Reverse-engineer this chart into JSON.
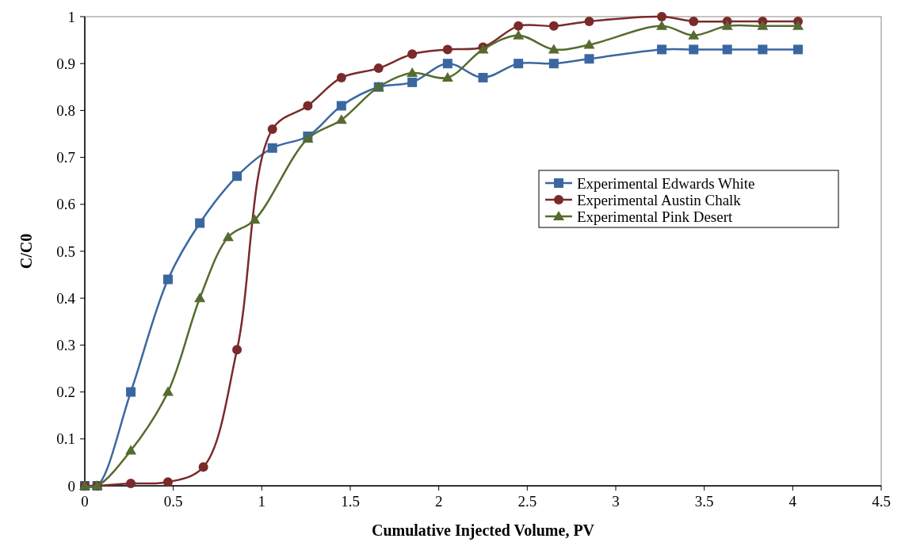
{
  "chart_data": {
    "type": "line",
    "xlabel": "Cumulative Injected Volume, PV",
    "ylabel": "C/C0",
    "x": [
      0,
      0.07,
      0.26,
      0.47,
      0.65,
      0.86,
      1.06,
      1.26,
      1.45,
      1.66,
      1.85,
      2.05,
      2.25,
      2.45,
      2.65,
      2.85,
      3.26,
      3.44,
      3.63,
      3.83,
      4.03
    ],
    "series": [
      {
        "name": "Experimental Edwards White",
        "color": "#3a67a0",
        "marker": "square",
        "values": [
          0,
          0,
          0.2,
          0.44,
          0.56,
          0.66,
          0.72,
          0.745,
          0.81,
          0.85,
          0.86,
          0.9,
          0.87,
          0.9,
          0.9,
          0.91,
          0.93,
          0.93,
          0.93,
          0.93,
          0.93
        ]
      },
      {
        "name": "Experimental Austin Chalk",
        "color": "#7a2a2a",
        "marker": "circle",
        "x": [
          0,
          0.07,
          0.26,
          0.47,
          0.67,
          0.86,
          1.06,
          1.26,
          1.45,
          1.66,
          1.85,
          2.05,
          2.25,
          2.45,
          2.65,
          2.85,
          3.26,
          3.44,
          3.63,
          3.83,
          4.03
        ],
        "values": [
          0,
          0,
          0.005,
          0.008,
          0.04,
          0.29,
          0.76,
          0.81,
          0.87,
          0.89,
          0.92,
          0.93,
          0.935,
          0.98,
          0.98,
          0.99,
          1,
          0.99,
          0.99,
          0.99,
          0.99
        ]
      },
      {
        "name": "Experimental Pink Desert",
        "color": "#556b2f",
        "marker": "triangle",
        "x": [
          0,
          0.07,
          0.26,
          0.47,
          0.65,
          0.81,
          0.96,
          1.26,
          1.45,
          1.66,
          1.85,
          2.05,
          2.25,
          2.45,
          2.65,
          2.85,
          3.26,
          3.44,
          3.63,
          3.83,
          4.03
        ],
        "values": [
          0,
          0,
          0.075,
          0.2,
          0.4,
          0.53,
          0.567,
          0.74,
          0.78,
          0.85,
          0.88,
          0.87,
          0.93,
          0.96,
          0.93,
          0.94,
          0.98,
          0.96,
          0.98,
          0.98,
          0.98
        ]
      }
    ],
    "xlim": [
      0,
      4.5
    ],
    "xticks": [
      0,
      0.5,
      1,
      1.5,
      2,
      2.5,
      3,
      3.5,
      4,
      4.5
    ],
    "ylim": [
      0,
      1
    ],
    "yticks": [
      0,
      0.1,
      0.2,
      0.3,
      0.4,
      0.5,
      0.6,
      0.7,
      0.8,
      0.9,
      1
    ],
    "grid": false,
    "legend": "right"
  }
}
